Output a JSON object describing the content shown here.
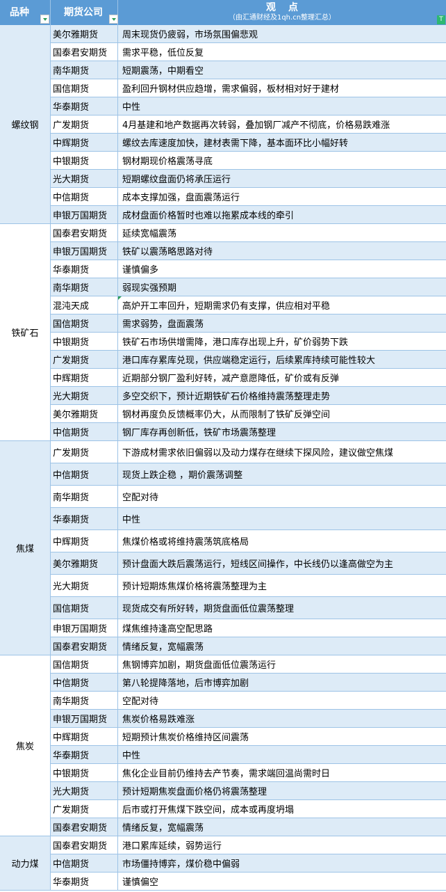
{
  "header": {
    "variety": "品种",
    "company": "期货公司",
    "view_title": "观点",
    "view_subtitle": "（由汇通财经及1qh.cn整理汇总）",
    "filter_icon": "filter-icon"
  },
  "colors": {
    "header": "#5b9bd5",
    "row_alt": "#ddebf7",
    "border": "#9dc3e6",
    "filter": "#2e9e5b"
  },
  "groups": [
    {
      "name": "螺纹钢",
      "rows": [
        [
          "美尔雅期货",
          "周末现货仍疲弱，市场氛围偏悲观"
        ],
        [
          "国泰君安期货",
          "需求平稳，低位反复"
        ],
        [
          "南华期货",
          "短期震荡，中期看空"
        ],
        [
          "国信期货",
          "盈利回升钢材供应趋增，需求偏弱，板材相对好于建材"
        ],
        [
          "华泰期货",
          "中性"
        ],
        [
          "广发期货",
          "4月基建和地产数据再次转弱，叠加钢厂减产不彻底，价格易跌难涨"
        ],
        [
          "中辉期货",
          "螺纹去库速度加快，建材表需下降，基本面环比小幅好转"
        ],
        [
          "中银期货",
          "钢材期现价格震荡寻底"
        ],
        [
          "光大期货",
          "短期螺纹盘面仍将承压运行"
        ],
        [
          "中信期货",
          "成本支撑加强，盘面震荡运行"
        ],
        [
          "申银万国期货",
          "成材盘面价格暂时也难以拖累成本线的牵引"
        ]
      ]
    },
    {
      "name": "铁矿石",
      "rows": [
        [
          "国泰君安期货",
          "延续宽幅震荡"
        ],
        [
          "申银万国期货",
          "铁矿以震荡略思路对待"
        ],
        [
          "华泰期货",
          "谨慎偏多"
        ],
        [
          "南华期货",
          "弱现实强预期"
        ],
        [
          "混沌天成",
          "高炉开工率回升，短期需求仍有支撑，供应相对平稳"
        ],
        [
          "国信期货",
          "需求弱势，盘面震荡"
        ],
        [
          "中银期货",
          "铁矿石市场供增需降，港口库存出现上升，矿价弱势下跌"
        ],
        [
          "广发期货",
          "港口库存累库兑现，供应端稳定运行，后续累库持续可能性较大"
        ],
        [
          "中辉期货",
          "近期部分钢厂盈利好转，减产意愿降低，矿价或有反弹"
        ],
        [
          "光大期货",
          "多空交织下，预计近期铁矿石价格维持震荡整理走势"
        ],
        [
          "美尔雅期货",
          "钢材再度负反馈概率仍大，从而限制了铁矿反弹空间"
        ],
        [
          "中信期货",
          "钢厂库存再创新低，铁矿市场震荡整理"
        ]
      ]
    },
    {
      "name": "焦煤",
      "rows": [
        [
          "广发期货",
          "下游成材需求依旧偏弱以及动力煤存在继续下探风险，建议做空焦煤"
        ],
        [
          "中信期货",
          "现货上跌企稳 ，期价震荡调整"
        ],
        [
          "南华期货",
          "空配对待"
        ],
        [
          "华泰期货",
          "中性"
        ],
        [
          "中辉期货",
          "焦煤价格或将维持震荡筑底格局"
        ],
        [
          "美尔雅期货",
          "预计盘面大跌后震荡运行，短线区间操作，中长线仍以逢高做空为主"
        ],
        [
          "光大期货",
          "预计短期炼焦煤价格将震荡整理为主"
        ],
        [
          "国信期货",
          "现货成交有所好转，期货盘面低位震荡整理"
        ],
        [
          "申银万国期货",
          "煤焦维持逢高空配思路"
        ],
        [
          "国泰君安期货",
          "情绪反复，宽幅震荡"
        ]
      ]
    },
    {
      "name": "焦炭",
      "rows": [
        [
          "国信期货",
          "焦钢博弈加剧，期货盘面低位震荡运行"
        ],
        [
          "中信期货",
          "第八轮提降落地，后市博弈加剧"
        ],
        [
          "南华期货",
          "空配对待"
        ],
        [
          "申银万国期货",
          "焦炭价格易跌难涨"
        ],
        [
          "中辉期货",
          "短期预计焦炭价格维持区间震荡"
        ],
        [
          "华泰期货",
          "中性"
        ],
        [
          "中银期货",
          "焦化企业目前仍维持去产节奏，需求端回温尚需时日"
        ],
        [
          "光大期货",
          "预计短期焦炭盘面价格仍将震荡整理"
        ],
        [
          "广发期货",
          "后市或打开焦煤下跌空间，成本或再度坍塌"
        ],
        [
          "国泰君安期货",
          "情绪反复，宽幅震荡"
        ]
      ]
    },
    {
      "name": "动力煤",
      "rows": [
        [
          "国泰君安期货",
          "港口累库延续，弱势运行"
        ],
        [
          "中信期货",
          "市场僵持博弈，煤价稳中偏弱"
        ],
        [
          "华泰期货",
          "谨慎偏空"
        ]
      ]
    }
  ]
}
